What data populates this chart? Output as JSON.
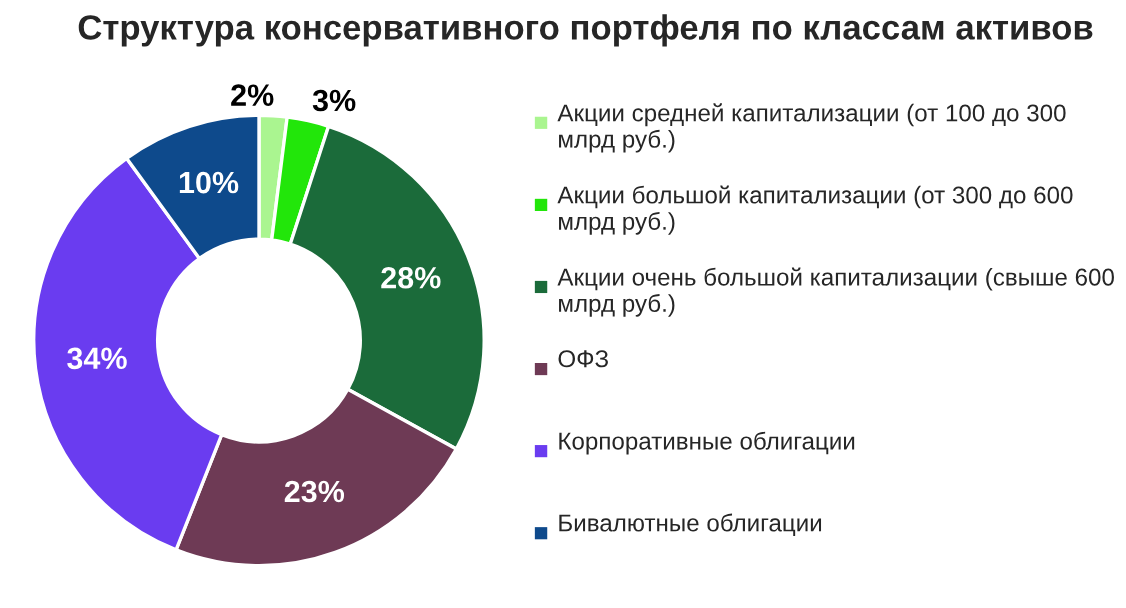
{
  "chart_data": {
    "type": "donut",
    "title": "Структура консервативного портфеля по классам активов",
    "categories": [
      "Акции средней капитализации (от 100 до 300 млрд руб.)",
      "Акции большой капитализации (от 300 до 600 млрд руб.)",
      "Акции очень большой капитализации (свыше 600 млрд руб.)",
      "ОФЗ",
      "Корпоративные облигации",
      "Бивалютные облигации"
    ],
    "values": [
      2,
      3,
      28,
      23,
      34,
      10
    ],
    "colors": [
      "#aaf590",
      "#22e60a",
      "#1b6b3a",
      "#6e3a55",
      "#6a3cf0",
      "#0e4a8c"
    ],
    "value_labels": [
      "2%",
      "3%",
      "28%",
      "23%",
      "34%",
      "10%"
    ],
    "legend": "right"
  }
}
